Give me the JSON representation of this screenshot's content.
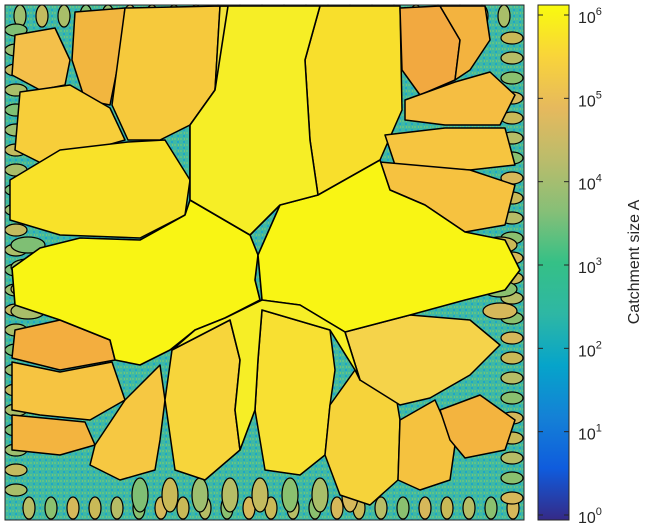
{
  "chart_data": {
    "type": "heatmap",
    "title": "",
    "xlabel": "",
    "ylabel": "",
    "description_of_field": "catchment (drainage basin) segmentation map; each region colored by its catchment size on a log color scale",
    "colorbar": {
      "label": "Catchment size A",
      "scale": "log",
      "range": [
        1,
        1000000
      ],
      "ticks": [
        {
          "value": 1,
          "base": "10",
          "exp": "0"
        },
        {
          "value": 10,
          "base": "10",
          "exp": "1"
        },
        {
          "value": 100,
          "base": "10",
          "exp": "2"
        },
        {
          "value": 1000,
          "base": "10",
          "exp": "3"
        },
        {
          "value": 10000,
          "base": "10",
          "exp": "4"
        },
        {
          "value": 100000,
          "base": "10",
          "exp": "5"
        },
        {
          "value": 1000000,
          "base": "10",
          "exp": "6"
        }
      ],
      "colormap": "parula"
    },
    "regions_approx": {
      "largest_central_catchments": 4,
      "large_catchments_log10A": [
        6.1,
        6.1,
        6.1,
        6.1
      ],
      "medium_catchments_log10A_range": [
        5.2,
        5.9
      ],
      "small_edge_catchments_log10A_range": [
        3.5,
        4.7
      ],
      "edge_background_log10A": 2.8
    },
    "grid": false,
    "colors": {
      "boundary": "#000000",
      "edge_background": "#3fb8a4"
    }
  }
}
